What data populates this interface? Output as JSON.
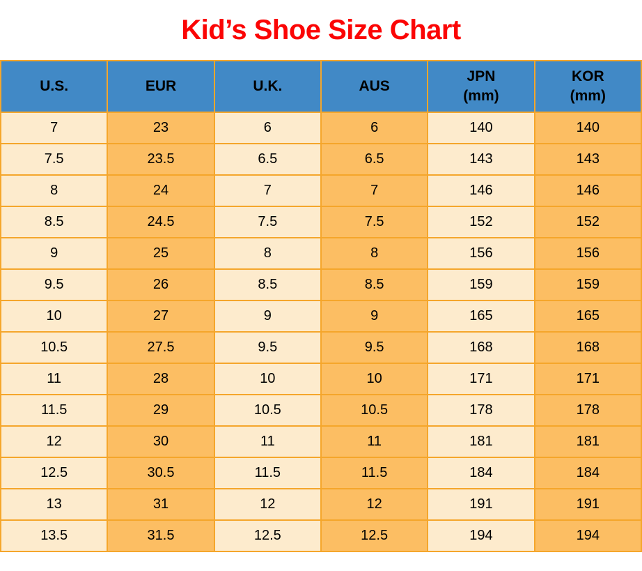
{
  "title": "Kid’s Shoe Size Chart",
  "colors": {
    "title_color": "#fb0505",
    "header_bg": "#4189c6",
    "cell_light": "#fdebcd",
    "cell_accent": "#fcbe63",
    "border_color": "#f5a62b"
  },
  "chart_data": {
    "type": "table",
    "title": "Kid’s Shoe Size Chart",
    "columns": [
      "U.S.",
      "EUR",
      "U.K.",
      "AUS",
      "JPN (mm)",
      "KOR (mm)"
    ],
    "column_header_lines": [
      [
        "U.S."
      ],
      [
        "EUR"
      ],
      [
        "U.K."
      ],
      [
        "AUS"
      ],
      [
        "JPN",
        "(mm)"
      ],
      [
        "KOR",
        "(mm)"
      ]
    ],
    "rows": [
      [
        "7",
        "23",
        "6",
        "6",
        "140",
        "140"
      ],
      [
        "7.5",
        "23.5",
        "6.5",
        "6.5",
        "143",
        "143"
      ],
      [
        "8",
        "24",
        "7",
        "7",
        "146",
        "146"
      ],
      [
        "8.5",
        "24.5",
        "7.5",
        "7.5",
        "152",
        "152"
      ],
      [
        "9",
        "25",
        "8",
        "8",
        "156",
        "156"
      ],
      [
        "9.5",
        "26",
        "8.5",
        "8.5",
        "159",
        "159"
      ],
      [
        "10",
        "27",
        "9",
        "9",
        "165",
        "165"
      ],
      [
        "10.5",
        "27.5",
        "9.5",
        "9.5",
        "168",
        "168"
      ],
      [
        "11",
        "28",
        "10",
        "10",
        "171",
        "171"
      ],
      [
        "11.5",
        "29",
        "10.5",
        "10.5",
        "178",
        "178"
      ],
      [
        "12",
        "30",
        "11",
        "11",
        "181",
        "181"
      ],
      [
        "12.5",
        "30.5",
        "11.5",
        "11.5",
        "184",
        "184"
      ],
      [
        "13",
        "31",
        "12",
        "12",
        "191",
        "191"
      ],
      [
        "13.5",
        "31.5",
        "12.5",
        "12.5",
        "194",
        "194"
      ]
    ]
  }
}
